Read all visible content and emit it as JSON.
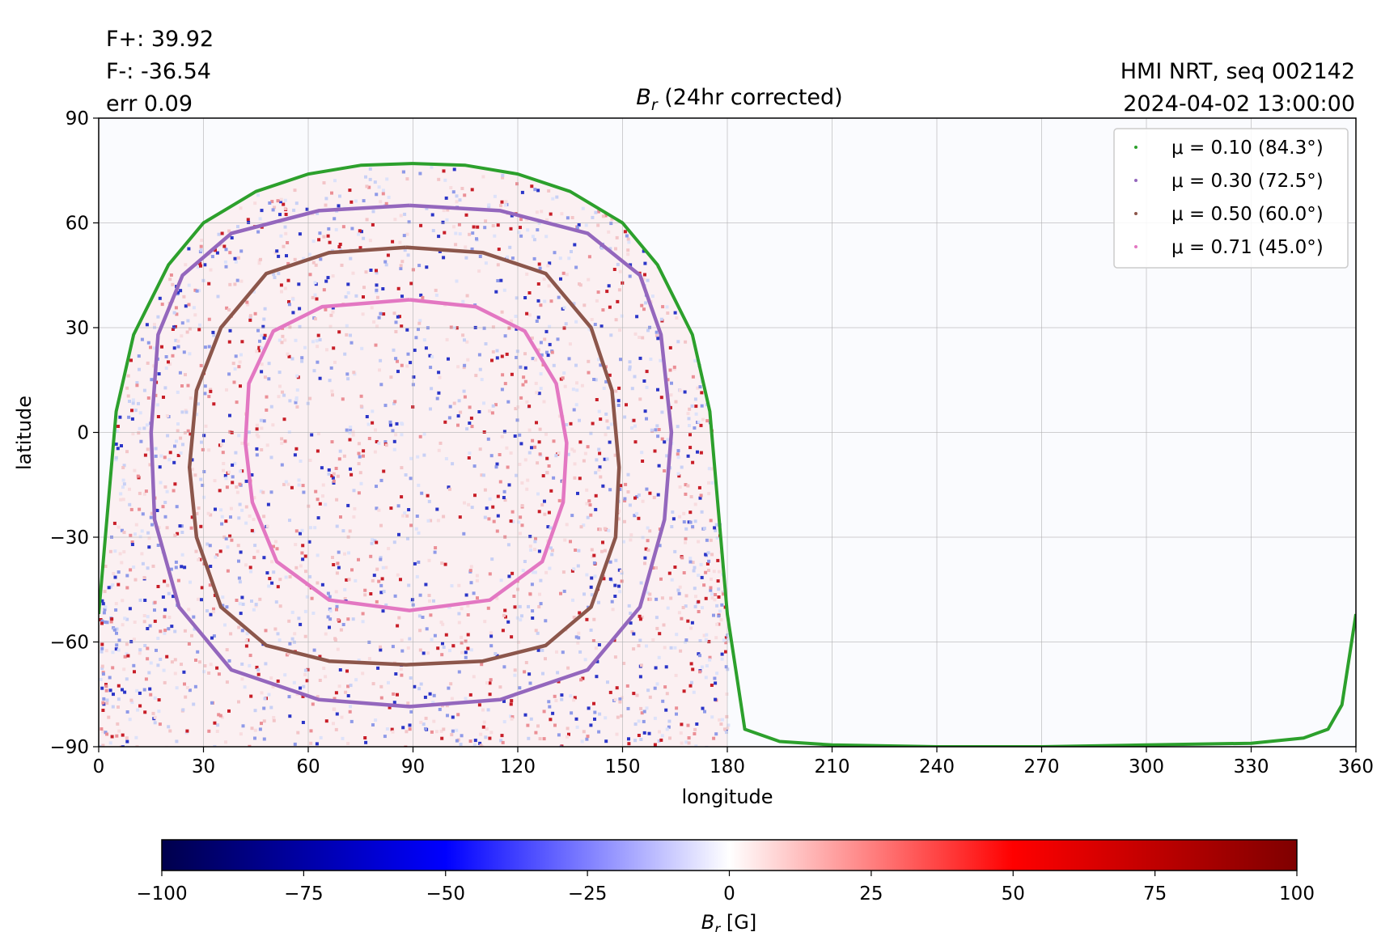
{
  "header": {
    "flux_pos": "F+: 39.92",
    "flux_neg": "F-: -36.54",
    "err": "err 0.09",
    "title_main": "B",
    "title_sub": "r",
    "title_rest": " (24hr corrected)",
    "instrument": "HMI NRT, seq 002142",
    "datetime": "2024-04-02 13:00:00"
  },
  "colorbar": {
    "label_main": "B",
    "label_sub": "r",
    "label_rest": " [G]",
    "min": -100,
    "max": 100,
    "ticks": [
      -100,
      -75,
      -50,
      -25,
      0,
      25,
      50,
      75,
      100
    ],
    "colormap": "seismic",
    "colors": {
      "low": "#00004c",
      "mid_low": "#0000ff",
      "zero": "#ffffff",
      "mid_high": "#ff0000",
      "high": "#7f0000"
    }
  },
  "chart_data": {
    "type": "heatmap",
    "title": "B_r (24hr corrected)",
    "xlabel": "longitude",
    "ylabel": "latitude",
    "xlim": [
      0,
      360
    ],
    "ylim": [
      -90,
      90
    ],
    "xticks": [
      0,
      30,
      60,
      90,
      120,
      150,
      180,
      210,
      240,
      270,
      300,
      330,
      360
    ],
    "yticks": [
      -90,
      -60,
      -30,
      0,
      30,
      60,
      90
    ],
    "grid": true,
    "legend_position": "top-right",
    "observed_longitude_range": [
      0,
      180
    ],
    "disk_center_longitude": 90,
    "series": [
      {
        "name": "μ = 0.10 (84.3°)",
        "mu": 0.1,
        "angle_deg": 84.3,
        "color": "#2ca02c",
        "x": [
          0,
          5,
          10,
          20,
          30,
          45,
          60,
          75,
          90,
          105,
          120,
          135,
          150,
          160,
          170,
          175,
          180,
          185,
          195,
          210,
          240,
          270,
          300,
          330,
          345,
          352,
          356,
          360
        ],
        "y": [
          -52,
          6,
          28,
          48,
          60,
          69,
          74,
          76.5,
          77,
          76.5,
          74,
          69,
          60,
          48,
          28,
          6,
          -52,
          -85,
          -88.5,
          -89.5,
          -90,
          -90,
          -89.5,
          -89,
          -87.5,
          -85,
          -78,
          -52
        ]
      },
      {
        "name": "μ = 0.30 (72.5°)",
        "mu": 0.3,
        "angle_deg": 72.5,
        "color": "#9467bd",
        "x": [
          89,
          115,
          140,
          155,
          161,
          164,
          162,
          155,
          140,
          115,
          89,
          63,
          38,
          23,
          16,
          15,
          17,
          24,
          38,
          63,
          89
        ],
        "y": [
          65,
          63.5,
          57,
          45,
          28,
          0,
          -25,
          -50,
          -68,
          -76.5,
          -78.5,
          -76.5,
          -68,
          -50,
          -25,
          0,
          28,
          45,
          57,
          63.5,
          65
        ]
      },
      {
        "name": "μ = 0.50 (60.0°)",
        "mu": 0.5,
        "angle_deg": 60.0,
        "color": "#8c564b",
        "x": [
          88,
          110,
          128,
          141,
          147,
          149,
          148,
          141,
          128,
          110,
          88,
          66,
          48,
          35,
          28,
          26,
          28,
          35,
          48,
          66,
          88
        ],
        "y": [
          53,
          51.5,
          45.5,
          30,
          12,
          -10,
          -30,
          -50,
          -61,
          -65.5,
          -66.5,
          -65.5,
          -61,
          -50,
          -30,
          -10,
          12,
          30,
          45.5,
          51.5,
          53
        ]
      },
      {
        "name": "μ = 0.71 (45.0°)",
        "mu": 0.71,
        "angle_deg": 45.0,
        "color": "#e377c2",
        "x": [
          89,
          108,
          122,
          131,
          134,
          133,
          127,
          112,
          89,
          66,
          51,
          44,
          42,
          43,
          50,
          64,
          89
        ],
        "y": [
          38,
          36,
          29,
          14,
          -3,
          -20,
          -37,
          -48,
          -51,
          -48,
          -37,
          -20,
          -3,
          14,
          29,
          36,
          38
        ]
      }
    ]
  }
}
